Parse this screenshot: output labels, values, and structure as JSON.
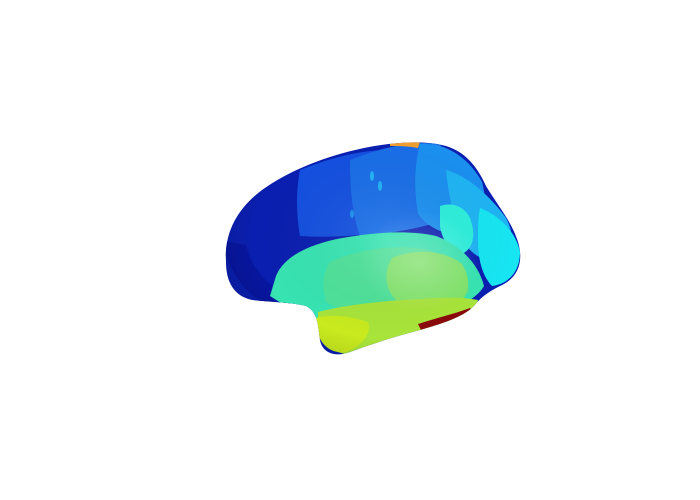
{
  "scene": {
    "subject": "inflated-cortical-surface-lateral-view",
    "colormap": "jet",
    "colors": {
      "background": "#ffffff",
      "dark_blue": "#0a1fb0",
      "navy": "#0716a0",
      "blue": "#1450e0",
      "mid_blue": "#1a6ee8",
      "sky_blue": "#1b90f0",
      "light_blue": "#1fb4f4",
      "cyan": "#17e6f2",
      "aqua": "#2cf0dc",
      "teal_green": "#38e4b2",
      "green": "#4ee29a",
      "light_green": "#80e46a",
      "yellow_green": "#a8e43a",
      "yellow": "#c8ea1e",
      "orange": "#f0a030",
      "dark_red": "#8a0a0a"
    }
  }
}
